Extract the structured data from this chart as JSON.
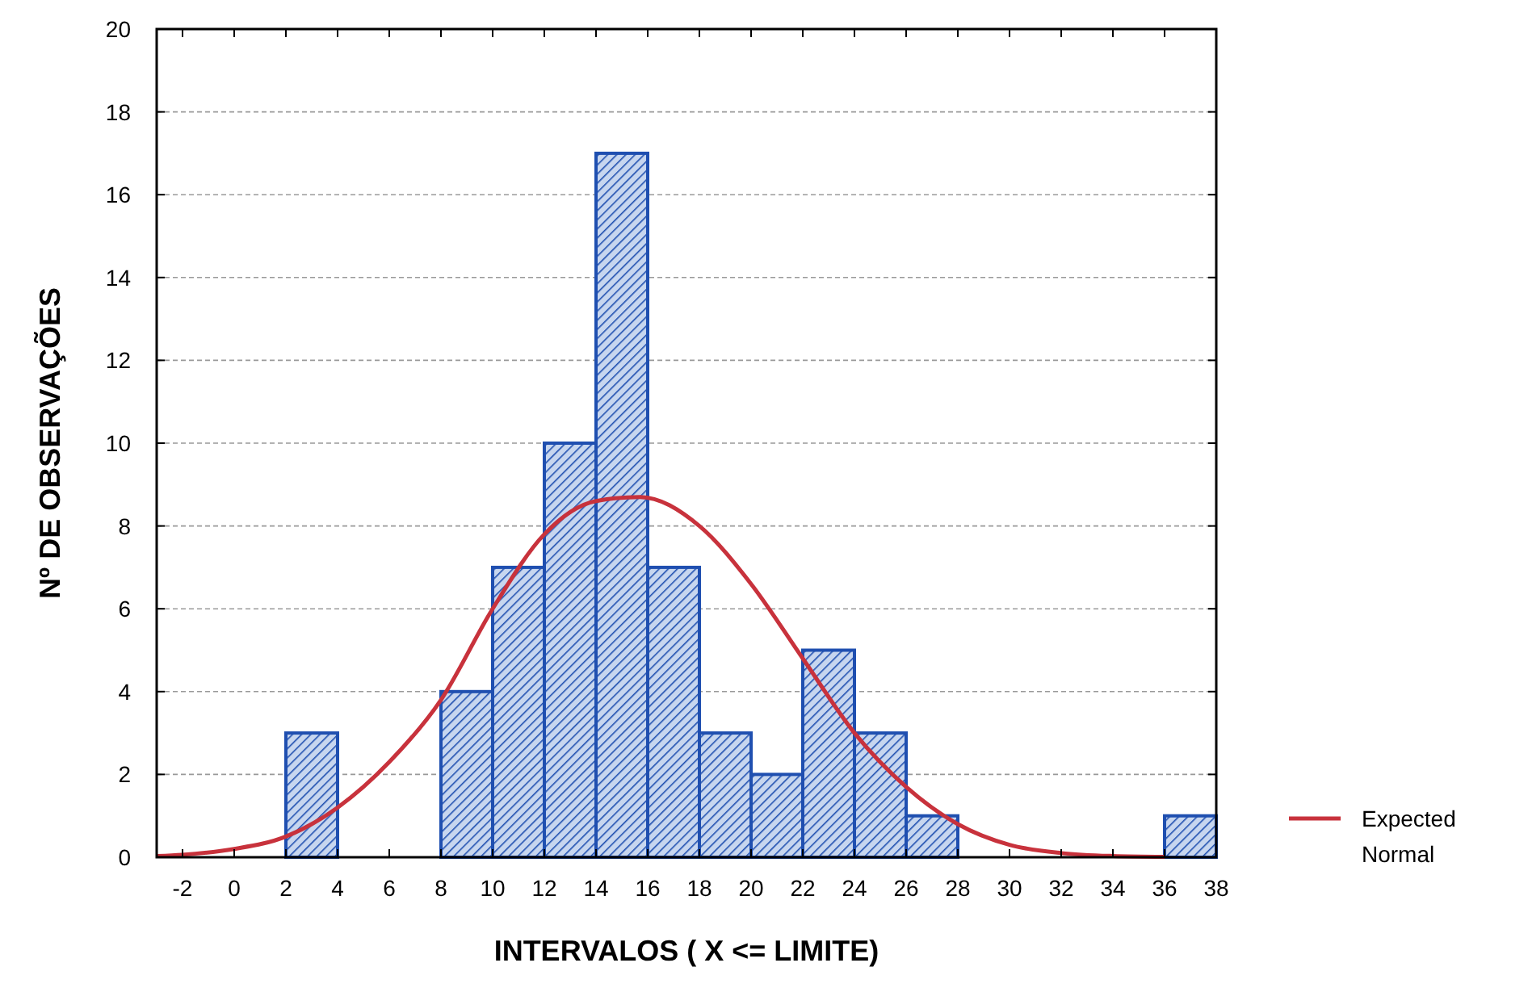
{
  "chart_data": {
    "type": "histogram",
    "xlabel": "INTERVALOS ( X <= LIMITE)",
    "ylabel": "Nº DE OBSERVAÇÕES",
    "bins": [
      -2,
      0,
      2,
      4,
      6,
      8,
      10,
      12,
      14,
      16,
      18,
      20,
      22,
      24,
      26,
      28,
      30,
      32,
      34,
      36,
      38
    ],
    "values": [
      0,
      0,
      3,
      0,
      0,
      4,
      7,
      10,
      17,
      7,
      3,
      2,
      5,
      3,
      1,
      0,
      0,
      0,
      0,
      1
    ],
    "color": "#1f4fb0",
    "series": [
      {
        "name": "Expected Normal",
        "type": "line",
        "color": "#c8323c",
        "x": [
          -3,
          -2,
          0,
          2,
          4,
          6,
          8,
          10,
          12,
          14,
          15.7,
          18,
          20,
          22,
          24,
          26,
          28,
          30,
          32,
          34,
          36
        ],
        "values": [
          0.03,
          0.06,
          0.2,
          0.5,
          1.2,
          2.3,
          3.8,
          6,
          7.8,
          8.6,
          8.7,
          8,
          6.6,
          4.8,
          3,
          1.7,
          0.8,
          0.3,
          0.1,
          0.03,
          0.01
        ]
      }
    ],
    "xlim": [
      -3,
      38
    ],
    "xticks": [
      -2,
      0,
      2,
      4,
      6,
      8,
      10,
      12,
      14,
      16,
      18,
      20,
      22,
      24,
      26,
      28,
      30,
      32,
      34,
      36,
      38
    ],
    "ylim": [
      0,
      20
    ],
    "yticks": [
      0,
      2,
      4,
      6,
      8,
      10,
      12,
      14,
      16,
      18,
      20
    ],
    "grid": "y",
    "legend": "right"
  }
}
